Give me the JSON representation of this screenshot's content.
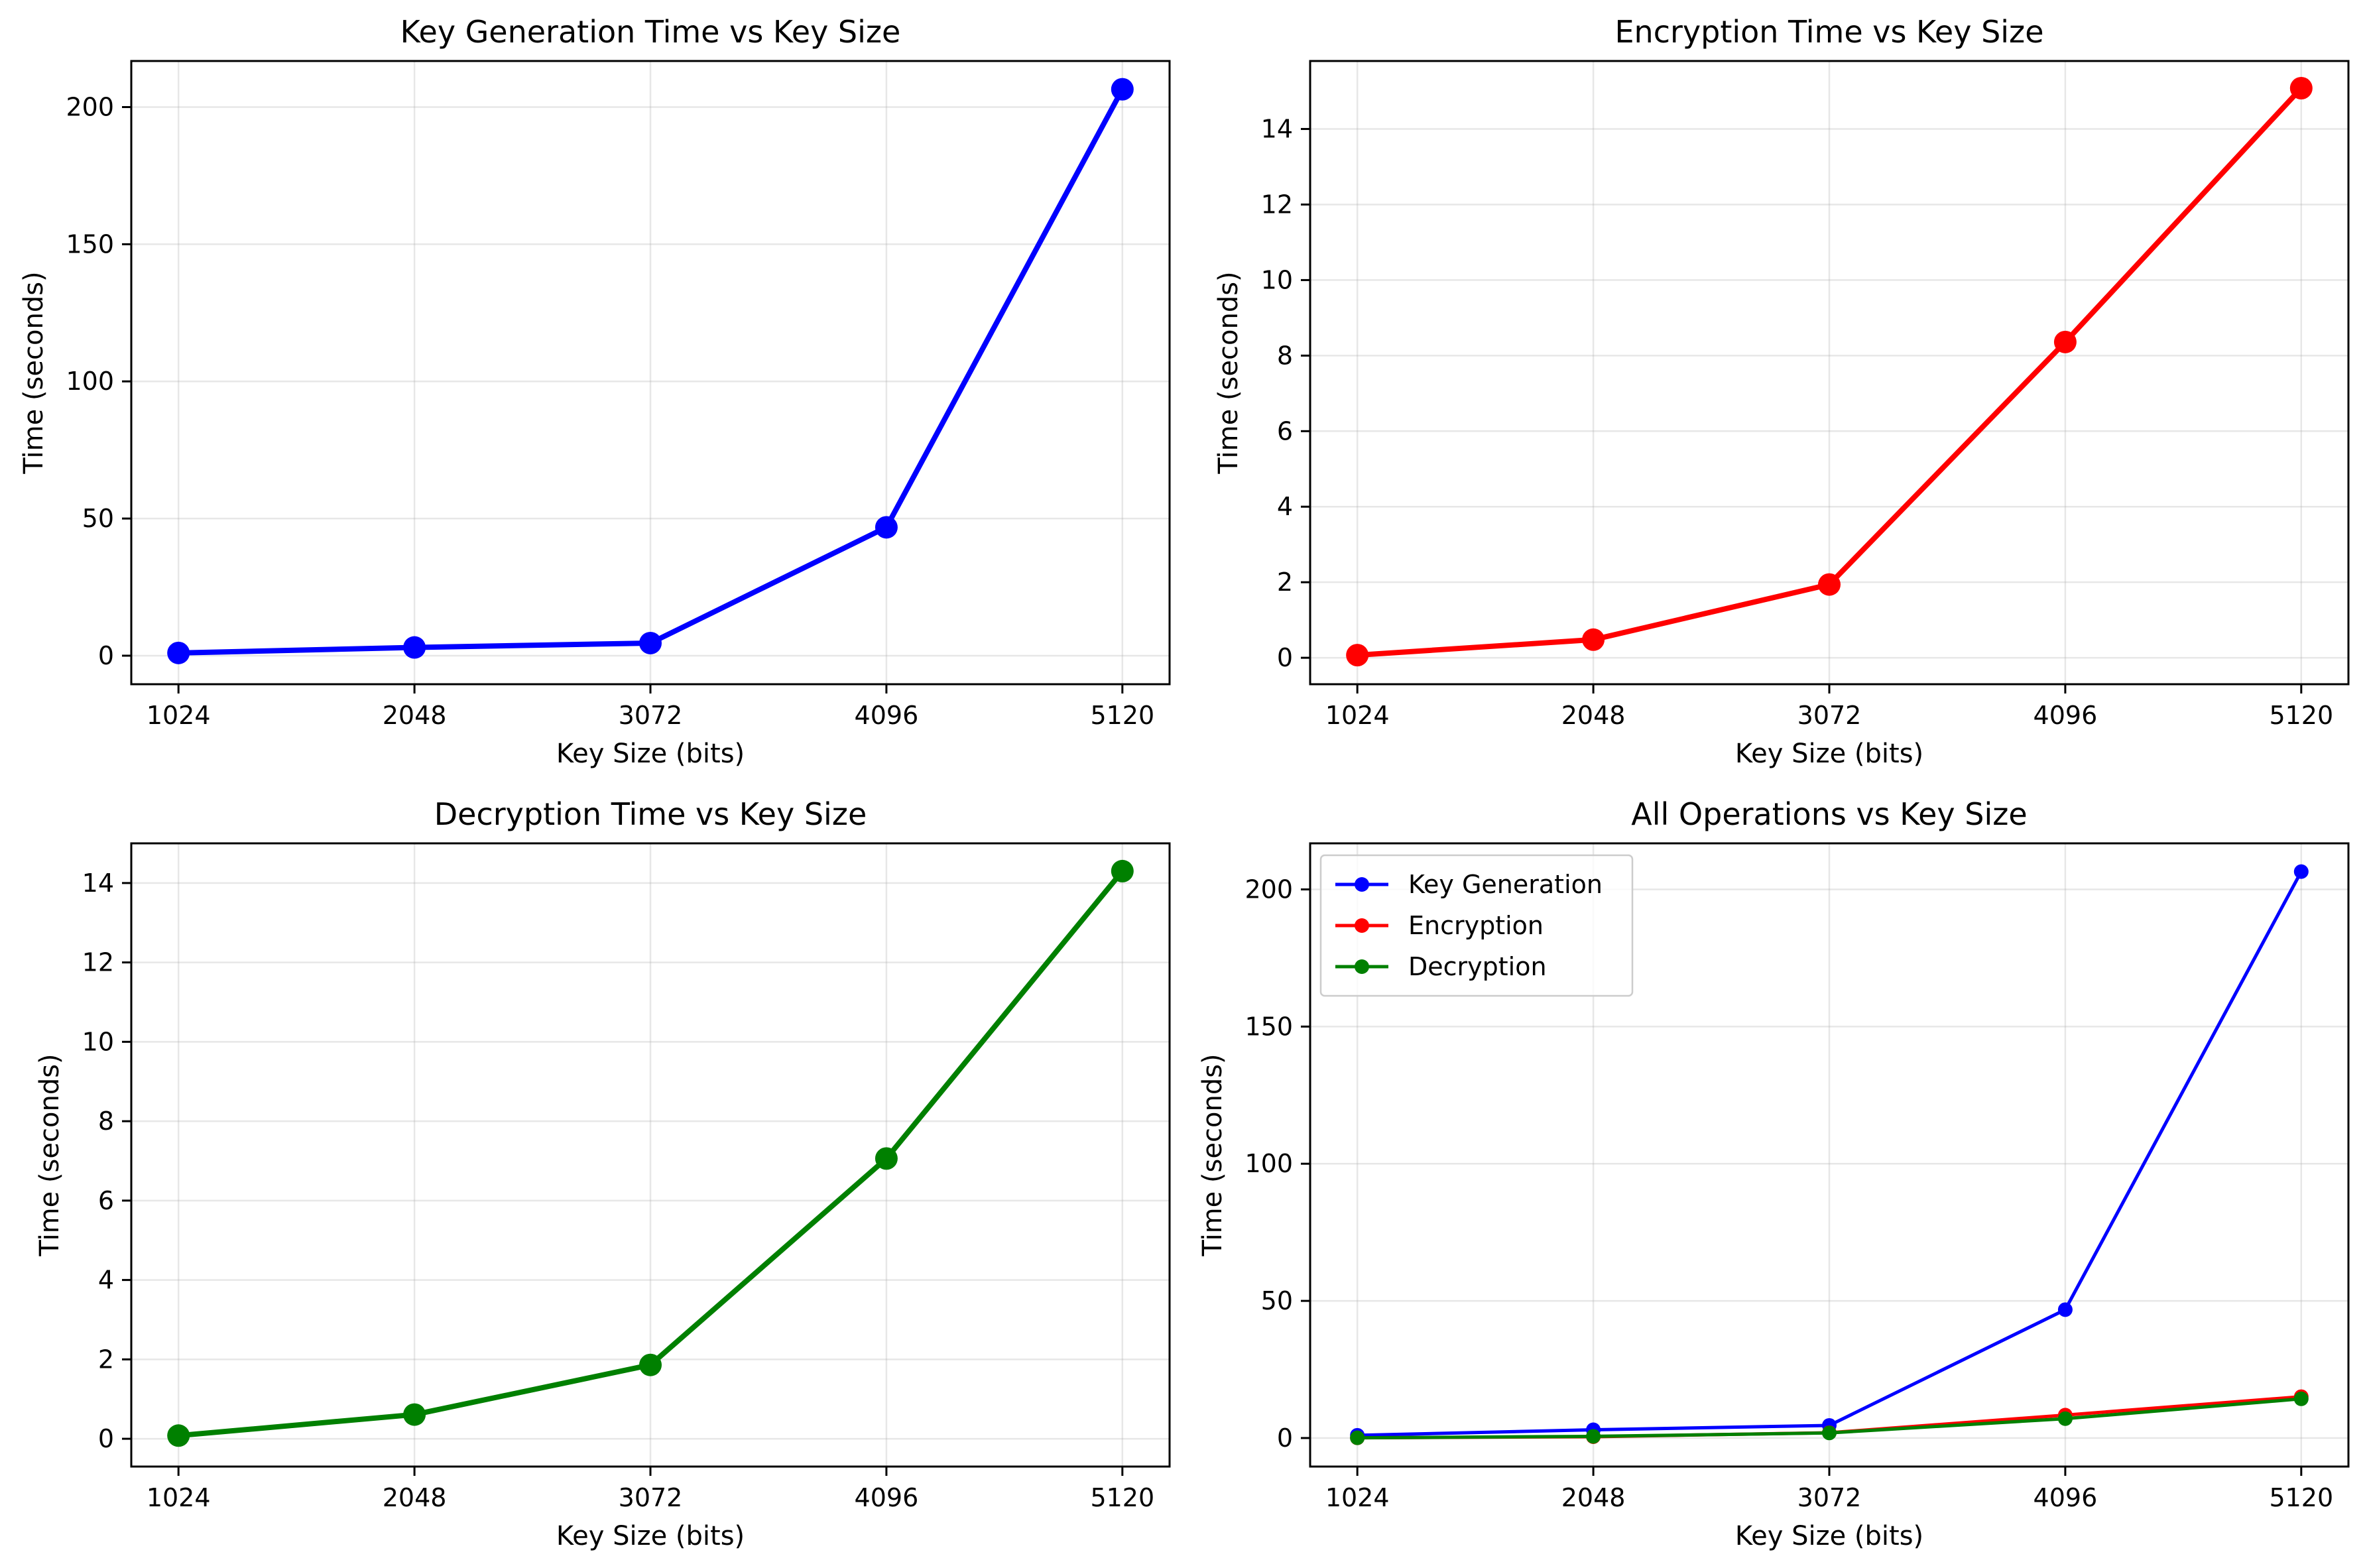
{
  "chart_data": [
    {
      "type": "line",
      "title": "Key Generation Time vs Key Size",
      "xlabel": "Key Size (bits)",
      "ylabel": "Time (seconds)",
      "x": [
        1024,
        2048,
        3072,
        4096,
        5120
      ],
      "xticks": [
        "1024",
        "2048",
        "3072",
        "4096",
        "5120"
      ],
      "ylim": [
        -10.4,
        216.8
      ],
      "yticks": [
        0,
        50,
        100,
        150,
        200
      ],
      "grid": true,
      "legend": null,
      "series": [
        {
          "values": [
            1.0,
            3.0,
            4.6,
            46.8,
            206.5
          ],
          "color": "#0000ff",
          "marker": "large"
        }
      ]
    },
    {
      "type": "line",
      "title": "Encryption Time vs Key Size",
      "xlabel": "Key Size (bits)",
      "ylabel": "Time (seconds)",
      "x": [
        1024,
        2048,
        3072,
        4096,
        5120
      ],
      "xticks": [
        "1024",
        "2048",
        "3072",
        "4096",
        "5120"
      ],
      "ylim": [
        -0.7,
        15.8
      ],
      "yticks": [
        0,
        2,
        4,
        6,
        8,
        10,
        12,
        14
      ],
      "grid": true,
      "legend": null,
      "series": [
        {
          "values": [
            0.07,
            0.48,
            1.94,
            8.36,
            15.08
          ],
          "color": "#ff0000",
          "marker": "large"
        }
      ]
    },
    {
      "type": "line",
      "title": "Decryption Time vs Key Size",
      "xlabel": "Key Size (bits)",
      "ylabel": "Time (seconds)",
      "x": [
        1024,
        2048,
        3072,
        4096,
        5120
      ],
      "xticks": [
        "1024",
        "2048",
        "3072",
        "4096",
        "5120"
      ],
      "ylim": [
        -0.7,
        15.0
      ],
      "yticks": [
        0,
        2,
        4,
        6,
        8,
        10,
        12,
        14
      ],
      "grid": true,
      "legend": null,
      "series": [
        {
          "values": [
            0.08,
            0.61,
            1.86,
            7.06,
            14.3
          ],
          "color": "#008000",
          "marker": "large"
        }
      ]
    },
    {
      "type": "line",
      "title": "All Operations vs Key Size",
      "xlabel": "Key Size (bits)",
      "ylabel": "Time (seconds)",
      "x": [
        1024,
        2048,
        3072,
        4096,
        5120
      ],
      "xticks": [
        "1024",
        "2048",
        "3072",
        "4096",
        "5120"
      ],
      "ylim": [
        -10.4,
        216.8
      ],
      "yticks": [
        0,
        50,
        100,
        150,
        200
      ],
      "grid": true,
      "legend": "top-left",
      "series": [
        {
          "name": "Key Generation",
          "values": [
            1.0,
            3.0,
            4.6,
            46.8,
            206.5
          ],
          "color": "#0000ff",
          "marker": "small"
        },
        {
          "name": "Encryption",
          "values": [
            0.07,
            0.48,
            1.94,
            8.36,
            15.08
          ],
          "color": "#ff0000",
          "marker": "small"
        },
        {
          "name": "Decryption",
          "values": [
            0.08,
            0.61,
            1.86,
            7.06,
            14.3
          ],
          "color": "#008000",
          "marker": "small"
        }
      ]
    }
  ]
}
